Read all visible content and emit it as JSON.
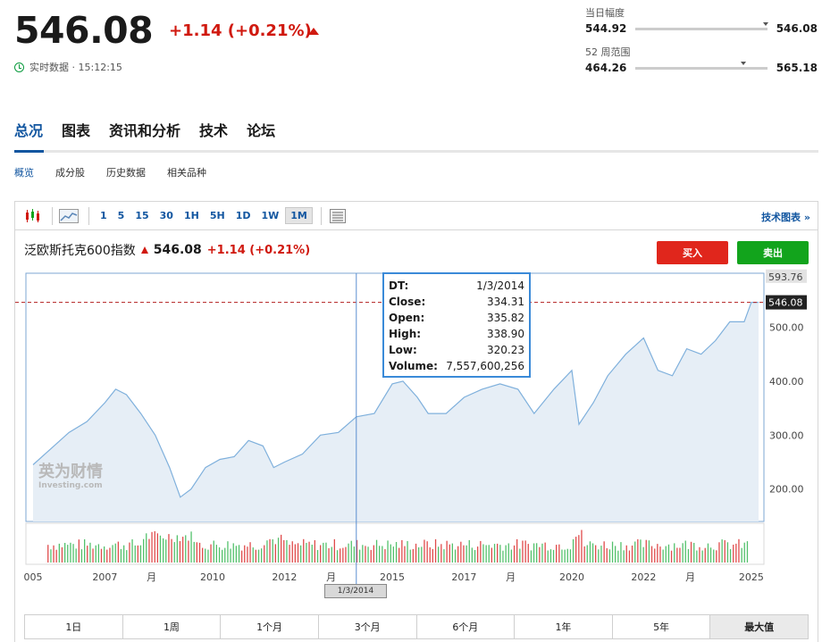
{
  "quote": {
    "price": "546.08",
    "change": "+1.14 (+0.21%)",
    "realtime_label": "实时数据 · 15:12:15"
  },
  "day_range": {
    "label": "当日幅度",
    "low": "544.92",
    "high": "546.08",
    "position": 0.97
  },
  "week52_range": {
    "label": "52 周范围",
    "low": "464.26",
    "high": "565.18",
    "position": 0.8
  },
  "main_tabs": [
    "总况",
    "图表",
    "资讯和分析",
    "技术",
    "论坛"
  ],
  "sub_tabs": [
    "概览",
    "成分股",
    "历史数据",
    "相关品种"
  ],
  "toolbar": {
    "intervals": [
      "1",
      "5",
      "15",
      "30",
      "1H",
      "5H",
      "1D",
      "1W",
      "1M"
    ],
    "active_interval": "1M",
    "tech_chart_link": "技术图表 »"
  },
  "chart_header": {
    "name": "泛欧斯托克600指数",
    "price": "546.08",
    "change": "+1.14 (+0.21%)",
    "buy_label": "买入",
    "sell_label": "卖出"
  },
  "watermark": {
    "brand_cn": "英为财情",
    "brand_en": "Investing.com"
  },
  "tooltip": {
    "dt_label": "DT:",
    "dt": "1/3/2014",
    "close_label": "Close:",
    "close": "334.31",
    "open_label": "Open:",
    "open": "335.82",
    "high_label": "High:",
    "high": "338.90",
    "low_label": "Low:",
    "low": "320.23",
    "volume_label": "Volume:",
    "volume": "7,557,600,256"
  },
  "crosshair_date": "1/3/2014",
  "periods": [
    "1日",
    "1周",
    "1个月",
    "3个月",
    "6个月",
    "1年",
    "5年",
    "最大值"
  ],
  "chart_data": {
    "type": "area",
    "x_tick_labels": [
      "005",
      "2007",
      "月",
      "2010",
      "2012",
      "月",
      "2015",
      "2017",
      "月",
      "2020",
      "2022",
      "月",
      "2025"
    ],
    "y_ticks": [
      200,
      300,
      400,
      500
    ],
    "y_tick_labels": [
      "200.00",
      "300.00",
      "400.00",
      "500.00"
    ],
    "ylim": [
      140,
      600
    ],
    "last_price_label": "546.08",
    "top_price_label": "593.76",
    "x": [
      2005.0,
      2005.5,
      2006.0,
      2006.5,
      2007.0,
      2007.3,
      2007.6,
      2008.0,
      2008.4,
      2008.8,
      2009.1,
      2009.4,
      2009.8,
      2010.2,
      2010.6,
      2011.0,
      2011.4,
      2011.7,
      2012.0,
      2012.5,
      2013.0,
      2013.5,
      2014.0,
      2014.5,
      2015.0,
      2015.3,
      2015.7,
      2016.0,
      2016.5,
      2017.0,
      2017.5,
      2018.0,
      2018.5,
      2018.95,
      2019.5,
      2020.0,
      2020.2,
      2020.6,
      2021.0,
      2021.5,
      2022.0,
      2022.4,
      2022.8,
      2023.2,
      2023.6,
      2024.0,
      2024.4,
      2024.8,
      2025.0,
      2025.2
    ],
    "values": [
      245,
      275,
      305,
      325,
      360,
      385,
      375,
      340,
      300,
      240,
      185,
      200,
      240,
      255,
      260,
      290,
      280,
      240,
      250,
      265,
      300,
      305,
      334,
      340,
      395,
      400,
      370,
      340,
      340,
      370,
      385,
      395,
      385,
      340,
      385,
      420,
      320,
      360,
      410,
      450,
      480,
      420,
      410,
      460,
      450,
      475,
      510,
      510,
      546,
      546
    ],
    "volume_color_up": "#e04b4b",
    "volume_color_down": "#53c16b",
    "area_color": "#e6eef6",
    "line_color": "#7fb0dc"
  }
}
